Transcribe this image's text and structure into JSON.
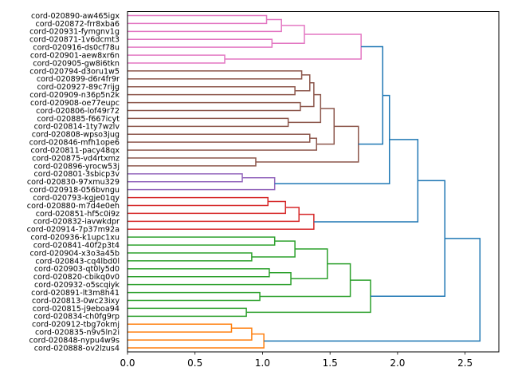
{
  "chart_data": {
    "type": "dendrogram",
    "title": "",
    "xlabel": "",
    "ylabel": "",
    "xlim": [
      0,
      2.75
    ],
    "x_ticks": [
      0.0,
      0.5,
      1.0,
      1.5,
      2.0,
      2.5
    ],
    "x_tick_labels": [
      "0.0",
      "0.5",
      "1.0",
      "1.5",
      "2.0",
      "2.5"
    ],
    "grid": false,
    "orientation": "left",
    "leaves": [
      "cord-020890-aw465igx",
      "cord-020872-frr8xba6",
      "cord-020931-fymgnv1g",
      "cord-020871-1v6dcmt3",
      "cord-020916-ds0cf78u",
      "cord-020901-aew8xr6n",
      "cord-020905-gw8i6tkn",
      "cord-020794-d3oru1w5",
      "cord-020899-d6r4fr9r",
      "cord-020927-89c7rijg",
      "cord-020909-n36p5n2k",
      "cord-020908-oe77eupc",
      "cord-020806-lof49r72",
      "cord-020885-f667icyt",
      "cord-020814-1ty7wzlv",
      "cord-020808-wpso3jug",
      "cord-020846-mfh1ope6",
      "cord-020811-pacy48qx",
      "cord-020875-vd4rtxmz",
      "cord-020896-yrocw53j",
      "cord-020801-3sbicp3v",
      "cord-020830-97xmu329",
      "cord-020918-056bvngu",
      "cord-020793-kgje01qy",
      "cord-020880-m7d4e0eh",
      "cord-020851-hf5c0i9z",
      "cord-020832-iavwkdpr",
      "cord-020914-7p37m92a",
      "cord-020936-k1upc1xu",
      "cord-020841-40f2p3t4",
      "cord-020904-x3o3a45b",
      "cord-020843-cq4lbd0l",
      "cord-020903-qt0ly5d0",
      "cord-020820-cbikq0v0",
      "cord-020932-o5scqiyk",
      "cord-020891-lt3m8h41",
      "cord-020813-0wc23ixy",
      "cord-020815-j9eboa94",
      "cord-020834-ch0fg9rp",
      "cord-020912-tbg7okmj",
      "cord-020835-n9v5ln2i",
      "cord-020848-nypu4w9s",
      "cord-020888-ov2lzus4"
    ],
    "cluster_colors": {
      "pink": "#e377c2",
      "brown": "#8c564b",
      "purple": "#9467bd",
      "red": "#d62728",
      "green": "#2ca02c",
      "orange": "#ff7f0e",
      "blue": "#1f77b4"
    },
    "merges": [
      {
        "id": "p1",
        "a": 0,
        "b": 1,
        "height": 1.03,
        "color": "pink"
      },
      {
        "id": "p2",
        "a": "p1",
        "b": 2,
        "height": 1.14,
        "color": "pink"
      },
      {
        "id": "p3",
        "a": 3,
        "b": 4,
        "height": 1.07,
        "color": "pink"
      },
      {
        "id": "p4",
        "a": "p2",
        "b": "p3",
        "height": 1.31,
        "color": "pink"
      },
      {
        "id": "p5",
        "a": 5,
        "b": 6,
        "height": 0.72,
        "color": "pink"
      },
      {
        "id": "p6",
        "a": "p4",
        "b": "p5",
        "height": 1.73,
        "color": "pink"
      },
      {
        "id": "b1",
        "a": 7,
        "b": 8,
        "height": 1.29,
        "color": "brown"
      },
      {
        "id": "b2",
        "a": 9,
        "b": 10,
        "height": 1.24,
        "color": "brown"
      },
      {
        "id": "b3",
        "a": "b1",
        "b": "b2",
        "height": 1.35,
        "color": "brown"
      },
      {
        "id": "b4",
        "a": 11,
        "b": 12,
        "height": 1.28,
        "color": "brown"
      },
      {
        "id": "b5",
        "a": "b3",
        "b": "b4",
        "height": 1.38,
        "color": "brown"
      },
      {
        "id": "b6",
        "a": 13,
        "b": 14,
        "height": 1.19,
        "color": "brown"
      },
      {
        "id": "b7",
        "a": "b5",
        "b": "b6",
        "height": 1.43,
        "color": "brown"
      },
      {
        "id": "b8",
        "a": 15,
        "b": 16,
        "height": 1.35,
        "color": "brown"
      },
      {
        "id": "b9",
        "a": "b8",
        "b": 17,
        "height": 1.4,
        "color": "brown"
      },
      {
        "id": "b10",
        "a": "b7",
        "b": "b9",
        "height": 1.53,
        "color": "brown"
      },
      {
        "id": "b11",
        "a": 18,
        "b": 19,
        "height": 0.95,
        "color": "brown"
      },
      {
        "id": "b12",
        "a": "b10",
        "b": "b11",
        "height": 1.71,
        "color": "brown"
      },
      {
        "id": "u1",
        "a": 20,
        "b": 21,
        "height": 0.85,
        "color": "purple"
      },
      {
        "id": "u2",
        "a": "u1",
        "b": 22,
        "height": 1.09,
        "color": "purple"
      },
      {
        "id": "r1",
        "a": 23,
        "b": 24,
        "height": 1.04,
        "color": "red"
      },
      {
        "id": "r2",
        "a": "r1",
        "b": 25,
        "height": 1.17,
        "color": "red"
      },
      {
        "id": "r3",
        "a": "r2",
        "b": 26,
        "height": 1.27,
        "color": "red"
      },
      {
        "id": "r4",
        "a": "r3",
        "b": 27,
        "height": 1.38,
        "color": "red"
      },
      {
        "id": "g1",
        "a": 28,
        "b": 29,
        "height": 1.09,
        "color": "green"
      },
      {
        "id": "g2",
        "a": 30,
        "b": 31,
        "height": 0.92,
        "color": "green"
      },
      {
        "id": "g3",
        "a": "g1",
        "b": "g2",
        "height": 1.24,
        "color": "green"
      },
      {
        "id": "g4",
        "a": 32,
        "b": 33,
        "height": 1.05,
        "color": "green"
      },
      {
        "id": "g5",
        "a": "g4",
        "b": 34,
        "height": 1.21,
        "color": "green"
      },
      {
        "id": "g6",
        "a": "g3",
        "b": "g5",
        "height": 1.48,
        "color": "green"
      },
      {
        "id": "g7",
        "a": 35,
        "b": 36,
        "height": 0.98,
        "color": "green"
      },
      {
        "id": "g8",
        "a": "g6",
        "b": "g7",
        "height": 1.65,
        "color": "green"
      },
      {
        "id": "g9",
        "a": 37,
        "b": 38,
        "height": 0.88,
        "color": "green"
      },
      {
        "id": "g10",
        "a": "g8",
        "b": "g9",
        "height": 1.8,
        "color": "green"
      },
      {
        "id": "o1",
        "a": 39,
        "b": 40,
        "height": 0.77,
        "color": "orange"
      },
      {
        "id": "o2",
        "a": "o1",
        "b": 41,
        "height": 0.92,
        "color": "orange"
      },
      {
        "id": "o3",
        "a": "o2",
        "b": 42,
        "height": 1.01,
        "color": "orange"
      },
      {
        "id": "t1",
        "a": "p6",
        "b": "b12",
        "height": 1.89,
        "color": "blue"
      },
      {
        "id": "t2",
        "a": "t1",
        "b": "u2",
        "height": 1.94,
        "color": "blue"
      },
      {
        "id": "t3",
        "a": "t2",
        "b": "r4",
        "height": 2.15,
        "color": "blue"
      },
      {
        "id": "t4",
        "a": "t3",
        "b": "g10",
        "height": 2.35,
        "color": "blue"
      },
      {
        "id": "t5",
        "a": "t4",
        "b": "o3",
        "height": 2.61,
        "color": "blue"
      }
    ]
  }
}
